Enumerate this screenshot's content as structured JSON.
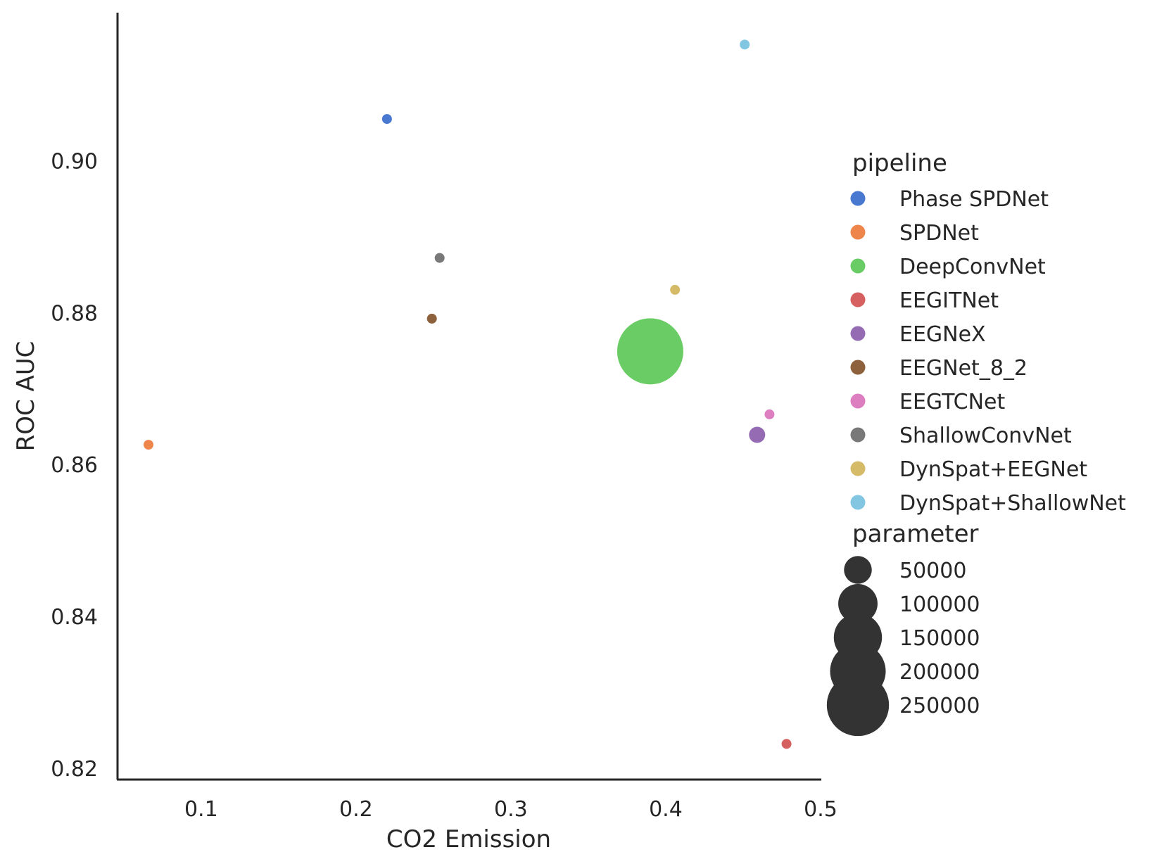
{
  "chart_data": {
    "type": "scatter",
    "xlabel": "CO2 Emission",
    "ylabel": "ROC AUC",
    "xlim": [
      0.046,
      0.5
    ],
    "ylim": [
      0.8185,
      0.9195
    ],
    "xticks": [
      0.1,
      0.2,
      0.3,
      0.4,
      0.5
    ],
    "yticks": [
      0.82,
      0.84,
      0.86,
      0.88,
      0.9
    ],
    "xtick_labels": [
      "0.1",
      "0.2",
      "0.3",
      "0.4",
      "0.5"
    ],
    "ytick_labels": [
      "0.82",
      "0.84",
      "0.86",
      "0.88",
      "0.90"
    ],
    "grid": false,
    "legend_placement": "right",
    "hue_legend_title": "pipeline",
    "size_legend_title": "parameter",
    "series": [
      {
        "name": "Phase SPDNet",
        "color": "#4878d0",
        "x": 0.22,
        "y": 0.9055,
        "parameter": 1500
      },
      {
        "name": "SPDNet",
        "color": "#ee854a",
        "x": 0.066,
        "y": 0.8626,
        "parameter": 1500
      },
      {
        "name": "DeepConvNet",
        "color": "#6acc64",
        "x": 0.39,
        "y": 0.8749,
        "parameter": 283000
      },
      {
        "name": "EEGITNet",
        "color": "#d65f5f",
        "x": 0.478,
        "y": 0.8232,
        "parameter": 5000
      },
      {
        "name": "EEGNeX",
        "color": "#956cb4",
        "x": 0.459,
        "y": 0.8639,
        "parameter": 17000
      },
      {
        "name": "EEGNet_8_2",
        "color": "#8c613c",
        "x": 0.249,
        "y": 0.8792,
        "parameter": 2500
      },
      {
        "name": "EEGTCNet",
        "color": "#dc7ec0",
        "x": 0.467,
        "y": 0.8666,
        "parameter": 3500
      },
      {
        "name": "ShallowConvNet",
        "color": "#797979",
        "x": 0.254,
        "y": 0.8872,
        "parameter": 5500
      },
      {
        "name": "DynSpat+EEGNet",
        "color": "#d5bb67",
        "x": 0.406,
        "y": 0.883,
        "parameter": 3000
      },
      {
        "name": "DynSpat+ShallowNet",
        "color": "#82c6e2",
        "x": 0.451,
        "y": 0.9153,
        "parameter": 5000
      }
    ],
    "size_legend": {
      "color": "#333333",
      "values": [
        50000,
        100000,
        150000,
        200000,
        250000
      ],
      "labels": [
        "50000",
        "100000",
        "150000",
        "200000",
        "250000"
      ]
    }
  }
}
